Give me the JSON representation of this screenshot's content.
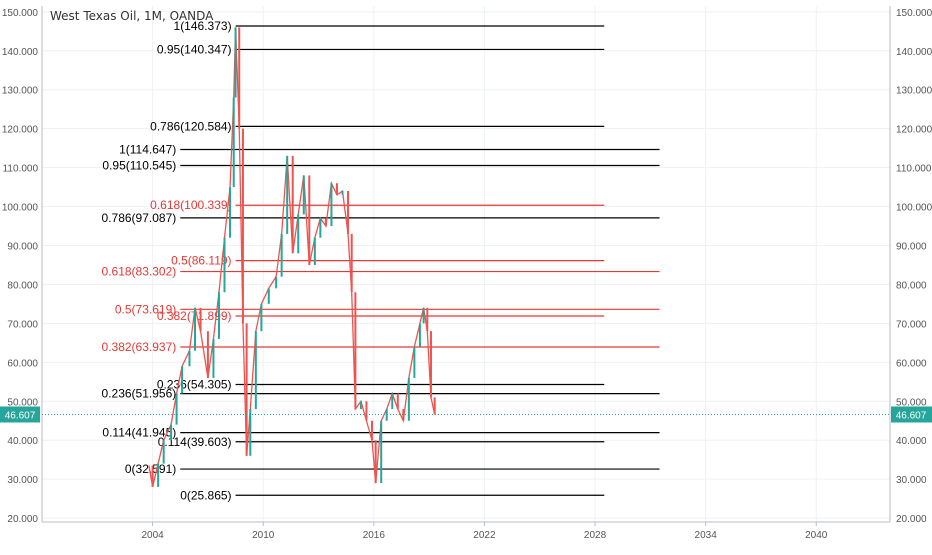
{
  "chart_data": {
    "type": "line",
    "title": "West Texas Oil, 1M, OANDA",
    "xlabel": "",
    "ylabel": "",
    "xlim": [
      1998.0,
      2044.0
    ],
    "ylim": [
      19.0,
      151.5
    ],
    "grid": true,
    "y_ticks": [
      "20.000",
      "30.000",
      "40.000",
      "50.000",
      "60.000",
      "70.000",
      "80.000",
      "90.000",
      "100.000",
      "110.000",
      "120.000",
      "130.000",
      "140.000",
      "150.000"
    ],
    "y_tick_values": [
      20,
      30,
      40,
      50,
      60,
      70,
      80,
      90,
      100,
      110,
      120,
      130,
      140,
      150
    ],
    "x_ticks": [
      "2004",
      "2010",
      "2016",
      "2022",
      "2028",
      "2034",
      "2040"
    ],
    "x_tick_values": [
      2004,
      2010,
      2016,
      2022,
      2028,
      2034,
      2040
    ],
    "last_price": {
      "label": "46.607",
      "value": 46.607
    },
    "fib_levels": [
      {
        "label": "1(146.373)",
        "value": 146.373,
        "x_start": 2008.5,
        "x_end": 2028.5,
        "color": "#000000"
      },
      {
        "label": "0.95(140.347)",
        "value": 140.347,
        "x_start": 2008.5,
        "x_end": 2028.5,
        "color": "#000000"
      },
      {
        "label": "0.786(120.584)",
        "value": 120.584,
        "x_start": 2008.5,
        "x_end": 2028.5,
        "color": "#000000"
      },
      {
        "label": "0.618(100.339)",
        "value": 100.339,
        "x_start": 2008.5,
        "x_end": 2028.5,
        "color": "#e53935"
      },
      {
        "label": "0.5(86.119)",
        "value": 86.119,
        "x_start": 2008.5,
        "x_end": 2028.5,
        "color": "#e53935"
      },
      {
        "label": "0.382(71.899)",
        "value": 71.899,
        "x_start": 2008.5,
        "x_end": 2028.5,
        "color": "#e53935"
      },
      {
        "label": "0.236(54.305)",
        "value": 54.305,
        "x_start": 2008.5,
        "x_end": 2028.5,
        "color": "#000000"
      },
      {
        "label": "0.114(39.603)",
        "value": 39.603,
        "x_start": 2008.5,
        "x_end": 2028.5,
        "color": "#000000"
      },
      {
        "label": "0(25.865)",
        "value": 25.865,
        "x_start": 2008.5,
        "x_end": 2028.5,
        "color": "#000000"
      },
      {
        "label": "1(114.647)",
        "value": 114.647,
        "x_start": 2005.5,
        "x_end": 2031.5,
        "color": "#000000"
      },
      {
        "label": "0.95(110.545)",
        "value": 110.545,
        "x_start": 2005.5,
        "x_end": 2031.5,
        "color": "#000000"
      },
      {
        "label": "0.786(97.087)",
        "value": 97.087,
        "x_start": 2005.5,
        "x_end": 2031.5,
        "color": "#000000"
      },
      {
        "label": "0.618(83.302)",
        "value": 83.302,
        "x_start": 2005.5,
        "x_end": 2031.5,
        "color": "#e53935"
      },
      {
        "label": "0.5(73.619)",
        "value": 73.619,
        "x_start": 2005.5,
        "x_end": 2031.5,
        "color": "#e53935"
      },
      {
        "label": "0.382(63.937)",
        "value": 63.937,
        "x_start": 2005.5,
        "x_end": 2031.5,
        "color": "#e53935"
      },
      {
        "label": "0.236(51.956)",
        "value": 51.956,
        "x_start": 2005.5,
        "x_end": 2031.5,
        "color": "#000000"
      },
      {
        "label": "0.114(41.945)",
        "value": 41.945,
        "x_start": 2005.5,
        "x_end": 2031.5,
        "color": "#000000"
      },
      {
        "label": "0(32.591)",
        "value": 32.591,
        "x_start": 2005.5,
        "x_end": 2031.5,
        "color": "#000000"
      }
    ],
    "price": {
      "x": [
        2003.8,
        2004.0,
        2004.3,
        2004.6,
        2005.0,
        2005.3,
        2005.6,
        2006.0,
        2006.3,
        2006.6,
        2007.0,
        2007.3,
        2007.6,
        2007.9,
        2008.2,
        2008.4,
        2008.5,
        2008.7,
        2008.9,
        2009.1,
        2009.3,
        2009.6,
        2009.9,
        2010.3,
        2010.7,
        2011.0,
        2011.3,
        2011.6,
        2011.9,
        2012.2,
        2012.5,
        2012.8,
        2013.1,
        2013.4,
        2013.7,
        2014.0,
        2014.3,
        2014.6,
        2014.8,
        2015.0,
        2015.3,
        2015.6,
        2015.9,
        2016.1,
        2016.4,
        2016.7,
        2017.0,
        2017.3,
        2017.6,
        2017.9,
        2018.2,
        2018.5,
        2018.7,
        2018.9,
        2019.1,
        2019.3
      ],
      "y": [
        33.5,
        28.0,
        34.0,
        40.0,
        44.0,
        52.0,
        59.0,
        63.0,
        74.0,
        68.0,
        56.0,
        66.0,
        78.0,
        92.0,
        105.0,
        128.0,
        146.0,
        120.0,
        70.0,
        36.0,
        48.0,
        68.0,
        75.0,
        79.0,
        82.0,
        93.0,
        113.0,
        88.0,
        98.0,
        108.0,
        85.0,
        92.0,
        97.0,
        95.0,
        106.0,
        103.0,
        104.0,
        93.0,
        78.0,
        48.0,
        50.0,
        45.0,
        40.0,
        29.0,
        45.0,
        48.0,
        52.0,
        48.0,
        45.0,
        56.0,
        64.0,
        70.0,
        74.0,
        68.0,
        51.0,
        46.6
      ]
    }
  }
}
